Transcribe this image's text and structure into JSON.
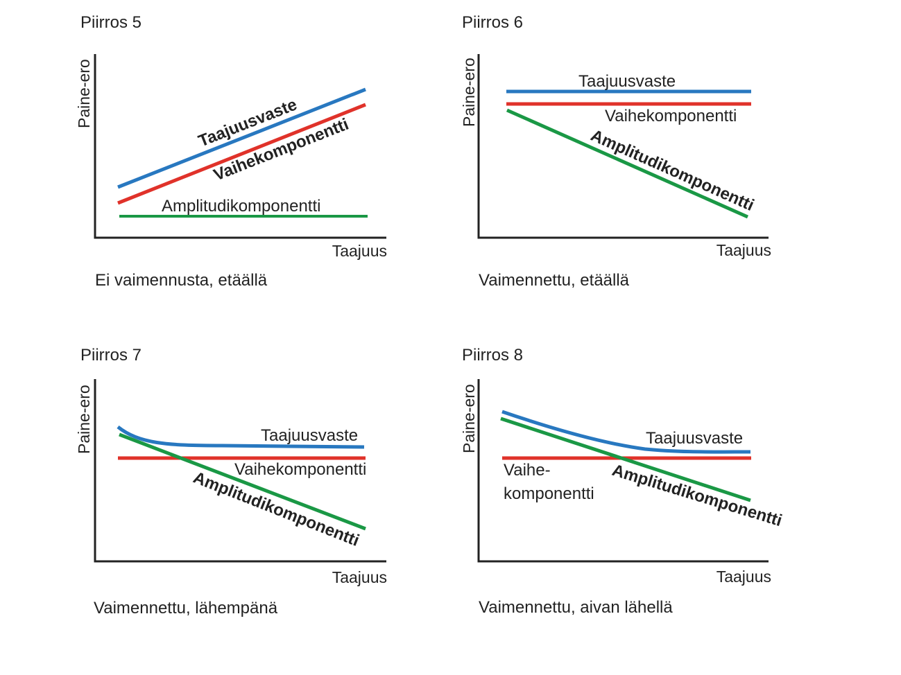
{
  "colors": {
    "taajuusvaste": "#2878c0",
    "vaihe": "#e0322a",
    "amplitudi": "#1a9845",
    "axis": "#222222"
  },
  "panels": [
    {
      "title": "Piirros 5",
      "ylabel": "Paine-ero",
      "xlabel": "Taajuus",
      "caption": "Ei vaimennusta, etäällä",
      "labels": {
        "taajuusvaste": "Taajuusvaste",
        "vaihe": "Vaihekomponentti",
        "amplitudi": "Amplitudikomponentti"
      }
    },
    {
      "title": "Piirros 6",
      "ylabel": "Paine-ero",
      "xlabel": "Taajuus",
      "caption": "Vaimennettu, etäällä",
      "labels": {
        "taajuusvaste": "Taajuusvaste",
        "vaihe": "Vaihekomponentti",
        "amplitudi": "Amplitudikomponentti"
      }
    },
    {
      "title": "Piirros 7",
      "ylabel": "Paine-ero",
      "xlabel": "Taajuus",
      "caption": "Vaimennettu, lähempänä",
      "labels": {
        "taajuusvaste": "Taajuusvaste",
        "vaihe": "Vaihekomponentti",
        "amplitudi": "Amplitudikomponentti"
      }
    },
    {
      "title": "Piirros 8",
      "ylabel": "Paine-ero",
      "xlabel": "Taajuus",
      "caption": "Vaimennettu, aivan lähellä",
      "labels": {
        "taajuusvaste": "Taajuusvaste",
        "vaihe_line1": "Vaihe-",
        "vaihe_line2": "komponentti",
        "amplitudi": "Amplitudikomponentti"
      }
    }
  ]
}
